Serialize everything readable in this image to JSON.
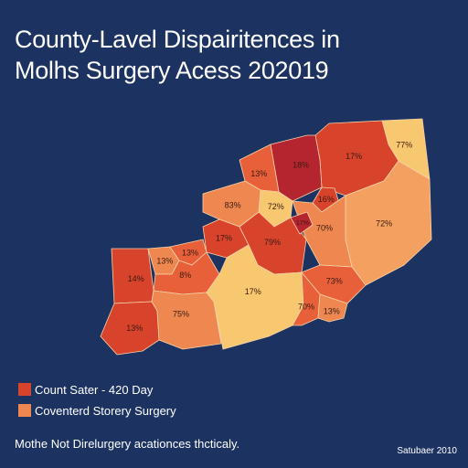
{
  "title": {
    "line1": "County-Lavel Dispairitences in",
    "line2": " Molhs Surgery Acess 202019"
  },
  "colors": {
    "background": "#1c3260",
    "dark_red": "#b52530",
    "red": "#d8432c",
    "orange_red": "#e8603a",
    "orange": "#ee8850",
    "light_orange": "#f3a060",
    "pale": "#f7c870"
  },
  "map": {
    "counties": [
      {
        "name": "east-tip",
        "label": "77%",
        "fill": "pale"
      },
      {
        "name": "northeast",
        "label": "17%",
        "fill": "red"
      },
      {
        "name": "north-peak",
        "label": "18%",
        "fill": "dark_red"
      },
      {
        "name": "north-west",
        "label": "13%",
        "fill": "orange_red"
      },
      {
        "name": "east-large",
        "label": "72%",
        "fill": "light_orange"
      },
      {
        "name": "central-north",
        "label": "72%",
        "fill": "pale"
      },
      {
        "name": "small-red-1",
        "label": "16%",
        "fill": "red"
      },
      {
        "name": "north-small",
        "label": "83%",
        "fill": "orange"
      },
      {
        "name": "central-east",
        "label": "70%",
        "fill": "orange"
      },
      {
        "name": "mid-west",
        "label": "17%",
        "fill": "red"
      },
      {
        "name": "center",
        "label": "79%",
        "fill": "red"
      },
      {
        "name": "center-dark",
        "label": "17%",
        "fill": "dark_red"
      },
      {
        "name": "southeast",
        "label": "73%",
        "fill": "orange_red"
      },
      {
        "name": "west-big",
        "label": "14%",
        "fill": "red"
      },
      {
        "name": "west-small-1",
        "label": "13%",
        "fill": "orange"
      },
      {
        "name": "west-small-2",
        "label": "13%",
        "fill": "orange_red"
      },
      {
        "name": "west-small-3",
        "label": "8%",
        "fill": "orange_red"
      },
      {
        "name": "south-west",
        "label": "13%",
        "fill": "red"
      },
      {
        "name": "south-mid",
        "label": "75%",
        "fill": "orange"
      },
      {
        "name": "south-center",
        "label": "17%",
        "fill": "pale"
      },
      {
        "name": "south-east-small",
        "label": "70%",
        "fill": "orange_red"
      },
      {
        "name": "south-tip",
        "label": "13%",
        "fill": "orange"
      }
    ]
  },
  "legend": [
    {
      "label": "Count Sater - 420 Day",
      "color": "#d8432c"
    },
    {
      "label": "Coventerd Storery Surgery",
      "color": "#ee8850"
    }
  ],
  "footnote": "Mothe Not Direlurgery acationces thcticaly.",
  "date": "Satubaer 2010"
}
